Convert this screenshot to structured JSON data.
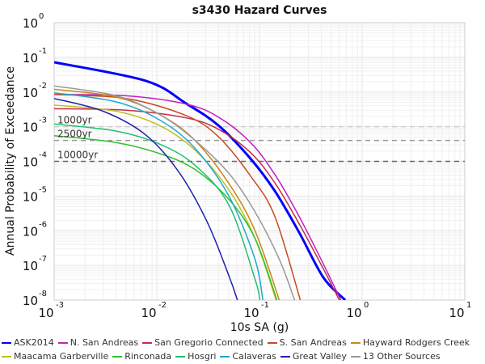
{
  "chart_data": {
    "type": "line",
    "title": "s3430 Hazard Curves",
    "xlabel": "10s SA (g)",
    "ylabel": "Annual Probability of Exceedance",
    "xscale": "log",
    "yscale": "log",
    "xlim": [
      0.001,
      10
    ],
    "ylim": [
      1e-08,
      1
    ],
    "grid": true,
    "legend_position": "bottom",
    "x_ticks": [
      {
        "base": "10",
        "exp": "-3",
        "value": 0.001
      },
      {
        "base": "10",
        "exp": "-2",
        "value": 0.01
      },
      {
        "base": "10",
        "exp": "-1",
        "value": 0.1
      },
      {
        "base": "10",
        "exp": "0",
        "value": 1
      },
      {
        "base": "10",
        "exp": "1",
        "value": 10
      }
    ],
    "y_ticks": [
      {
        "base": "10",
        "exp": "0",
        "value": 1
      },
      {
        "base": "10",
        "exp": "-1",
        "value": 0.1
      },
      {
        "base": "10",
        "exp": "-2",
        "value": 0.01
      },
      {
        "base": "10",
        "exp": "-3",
        "value": 0.001
      },
      {
        "base": "10",
        "exp": "-4",
        "value": 0.0001
      },
      {
        "base": "10",
        "exp": "-5",
        "value": 1e-05
      },
      {
        "base": "10",
        "exp": "-6",
        "value": 1e-06
      },
      {
        "base": "10",
        "exp": "-7",
        "value": 1e-07
      },
      {
        "base": "10",
        "exp": "-8",
        "value": 1e-08
      }
    ],
    "return_periods": [
      {
        "label": "1000yr",
        "value": 0.001,
        "color": "#cccccc"
      },
      {
        "label": "2500yr",
        "value": 0.0004,
        "color": "#999999"
      },
      {
        "label": "10000yr",
        "value": 0.0001,
        "color": "#666666"
      }
    ],
    "series": [
      {
        "name": "ASK2014",
        "color": "#0000ff",
        "width": 3,
        "x": [
          0.001,
          0.0078,
          0.0192,
          0.0397,
          0.0818,
          0.141,
          0.243,
          0.419,
          0.685
        ],
        "y": [
          0.072,
          0.021,
          0.0047,
          0.0011,
          0.00012,
          1.4e-05,
          9e-07,
          4.5e-08,
          1e-08
        ]
      },
      {
        "name": "N. San Andreas",
        "color": "#c020c0",
        "width": 1.5,
        "x": [
          0.001,
          0.005,
          0.0192,
          0.0397,
          0.0818,
          0.141,
          0.243,
          0.419,
          0.62
        ],
        "y": [
          0.0085,
          0.0078,
          0.0045,
          0.0019,
          0.00035,
          4.2e-05,
          2.6e-06,
          1.1e-07,
          1e-08
        ]
      },
      {
        "name": "San Gregorio Connected",
        "color": "#c0304a",
        "width": 1.5,
        "x": [
          0.001,
          0.005,
          0.0192,
          0.0397,
          0.0818,
          0.141,
          0.243,
          0.419,
          0.6
        ],
        "y": [
          0.0033,
          0.003,
          0.0018,
          0.00085,
          0.00018,
          2.4e-05,
          1.6e-06,
          8e-08,
          1e-08
        ]
      },
      {
        "name": "S. San Andreas",
        "color": "#c84820",
        "width": 1.5,
        "x": [
          0.001,
          0.005,
          0.0192,
          0.0397,
          0.0818,
          0.141,
          0.25
        ],
        "y": [
          0.0085,
          0.0065,
          0.0021,
          0.00052,
          3.8e-05,
          2.6e-06,
          1e-08
        ]
      },
      {
        "name": "Hayward Rodgers Creek",
        "color": "#c8861a",
        "width": 1.5,
        "x": [
          0.001,
          0.004,
          0.0105,
          0.0232,
          0.0504,
          0.0905,
          0.156
        ],
        "y": [
          0.012,
          0.0072,
          0.0023,
          0.00042,
          2.3e-05,
          1e-06,
          1e-08
        ]
      },
      {
        "name": "Maacama Garberville",
        "color": "#c0c020",
        "width": 1.5,
        "x": [
          0.001,
          0.004,
          0.0105,
          0.0232,
          0.0504,
          0.0905,
          0.145
        ],
        "y": [
          0.0042,
          0.0028,
          0.0011,
          0.00022,
          1.5e-05,
          6e-07,
          1e-08
        ]
      },
      {
        "name": "Rinconada",
        "color": "#30c030",
        "width": 1.5,
        "x": [
          0.001,
          0.004,
          0.0105,
          0.0232,
          0.0504,
          0.0905,
          0.148
        ],
        "y": [
          0.00055,
          0.00035,
          0.00017,
          6e-05,
          8e-06,
          6e-07,
          1e-08
        ]
      },
      {
        "name": "Hosgri",
        "color": "#20c070",
        "width": 1.5,
        "x": [
          0.001,
          0.004,
          0.0105,
          0.0232,
          0.0504,
          0.0905,
          0.101
        ],
        "y": [
          0.0012,
          0.00075,
          0.00032,
          8e-05,
          5.5e-06,
          4e-08,
          1e-08
        ]
      },
      {
        "name": "Calaveras",
        "color": "#20a8d0",
        "width": 1.5,
        "x": [
          0.001,
          0.004,
          0.0105,
          0.0232,
          0.0504,
          0.0905,
          0.108
        ],
        "y": [
          0.0095,
          0.0052,
          0.0016,
          0.00025,
          1e-05,
          1.5e-07,
          1e-08
        ]
      },
      {
        "name": "Great Valley",
        "color": "#2020b0",
        "width": 1.5,
        "x": [
          0.001,
          0.003,
          0.0078,
          0.0165,
          0.0312,
          0.0504,
          0.061
        ],
        "y": [
          0.0065,
          0.0028,
          0.00058,
          4.8e-05,
          1.7e-06,
          5e-08,
          1e-08
        ]
      },
      {
        "name": "13 Other Sources",
        "color": "#999999",
        "width": 1.5,
        "x": [
          0.001,
          0.004,
          0.0105,
          0.0232,
          0.0504,
          0.0905,
          0.156,
          0.22
        ],
        "y": [
          0.015,
          0.0078,
          0.0023,
          0.00042,
          4.5e-05,
          3.5e-06,
          1.5e-07,
          1e-08
        ]
      }
    ]
  }
}
